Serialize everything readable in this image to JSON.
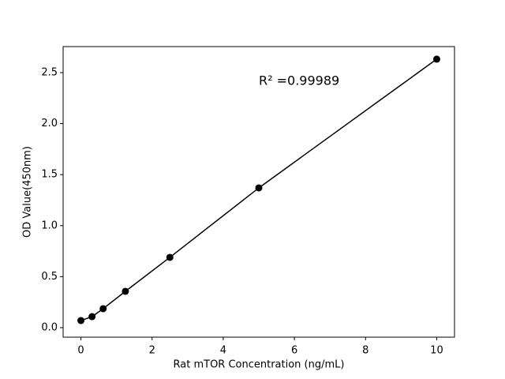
{
  "chart_data": {
    "type": "line",
    "x_label": "Rat mTOR Concentration (ng/mL)",
    "y_label": "OD Value(450nm)",
    "annotation": "R² =0.99989",
    "x": [
      0,
      0.3125,
      0.625,
      1.25,
      2.5,
      5,
      10
    ],
    "series": [
      {
        "color": "#000000",
        "values": [
          0.07,
          0.108,
          0.186,
          0.356,
          0.689,
          1.37,
          2.632
        ]
      }
    ],
    "xlim": [
      -0.5,
      10.5
    ],
    "xticks": [
      0,
      2,
      4,
      6,
      8,
      10
    ],
    "ylim": [
      -0.093,
      2.755
    ],
    "yticks": [
      {
        "value": 0,
        "label": "0.0"
      },
      0.5,
      {
        "value": 1,
        "label": "1.0"
      },
      1.5,
      {
        "value": 2,
        "label": "2.0"
      },
      2.5
    ],
    "grid": false
  }
}
